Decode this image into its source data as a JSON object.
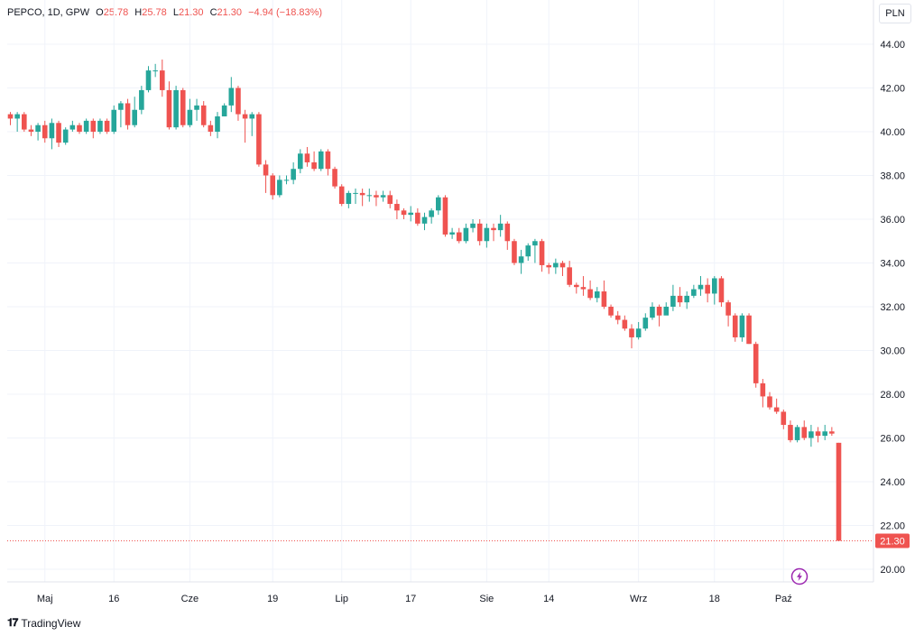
{
  "legend": {
    "symbol": "PEPCO, 1D, GPW",
    "open_label": "O",
    "open": "25.78",
    "high_label": "H",
    "high": "25.78",
    "low_label": "L",
    "low": "21.30",
    "close_label": "C",
    "close": "21.30",
    "change": "−4.94 (−18.83%)"
  },
  "currency_button": "PLN",
  "last_price_badge": "21.30",
  "brand": "TradingView",
  "colors": {
    "up": "#26a69a",
    "down": "#ef5350",
    "grid": "#f0f3fa",
    "price_line": "#ef5350",
    "alert": "#9c27b0"
  },
  "icons": {
    "alert": "lightning-icon",
    "brand": "tradingview-logo-icon"
  },
  "chart_data": {
    "type": "candlestick",
    "y_axis": {
      "min": 20,
      "max": 44,
      "ticks": [
        "44.00",
        "42.00",
        "40.00",
        "38.00",
        "36.00",
        "34.00",
        "32.00",
        "30.00",
        "28.00",
        "26.00",
        "24.00",
        "22.00",
        "20.00"
      ],
      "position": "right"
    },
    "x_axis": {
      "ticks": [
        "Maj",
        "16",
        "Cze",
        "19",
        "Lip",
        "17",
        "Sie",
        "14",
        "Wrz",
        "18",
        "Paź"
      ],
      "tick_bar_index": [
        5,
        15,
        26,
        38,
        48,
        58,
        69,
        78,
        91,
        102,
        112
      ]
    },
    "grid": true,
    "last_price": 21.3,
    "candles": [
      [
        40.8,
        40.6,
        40.9,
        40.3
      ],
      [
        40.6,
        40.8,
        40.9,
        40.0
      ],
      [
        40.8,
        40.1,
        40.9,
        40.0
      ],
      [
        40.1,
        40.0,
        40.3,
        39.8
      ],
      [
        40.0,
        40.3,
        40.4,
        39.6
      ],
      [
        40.3,
        39.7,
        40.5,
        39.5
      ],
      [
        39.7,
        40.4,
        40.6,
        39.2
      ],
      [
        40.4,
        39.5,
        40.5,
        39.3
      ],
      [
        39.5,
        40.1,
        40.2,
        39.4
      ],
      [
        40.1,
        40.3,
        40.5,
        40.0
      ],
      [
        40.3,
        40.0,
        40.4,
        39.9
      ],
      [
        40.0,
        40.5,
        40.6,
        39.9
      ],
      [
        40.5,
        40.0,
        40.6,
        39.7
      ],
      [
        40.0,
        40.5,
        40.6,
        39.9
      ],
      [
        40.5,
        40.0,
        40.6,
        39.9
      ],
      [
        40.0,
        41.0,
        41.2,
        39.9
      ],
      [
        41.0,
        41.3,
        41.4,
        40.2
      ],
      [
        41.3,
        40.3,
        41.5,
        40.1
      ],
      [
        40.3,
        41.0,
        41.6,
        40.2
      ],
      [
        41.0,
        41.9,
        42.1,
        40.8
      ],
      [
        41.9,
        42.8,
        43.0,
        41.8
      ],
      [
        42.8,
        42.8,
        43.1,
        42.5
      ],
      [
        42.8,
        41.9,
        43.3,
        41.6
      ],
      [
        41.9,
        40.2,
        42.3,
        40.1
      ],
      [
        40.2,
        41.9,
        42.1,
        40.1
      ],
      [
        41.9,
        40.3,
        42.0,
        40.2
      ],
      [
        40.3,
        41.0,
        41.5,
        40.2
      ],
      [
        41.0,
        41.2,
        41.5,
        40.5
      ],
      [
        41.2,
        40.3,
        41.4,
        40.2
      ],
      [
        40.3,
        40.0,
        40.5,
        39.8
      ],
      [
        40.0,
        40.7,
        40.9,
        39.7
      ],
      [
        40.7,
        41.2,
        41.3,
        40.7
      ],
      [
        41.2,
        42.0,
        42.5,
        40.9
      ],
      [
        42.0,
        40.8,
        42.1,
        40.5
      ],
      [
        40.8,
        40.6,
        41.0,
        39.5
      ],
      [
        40.6,
        40.8,
        40.9,
        39.8
      ],
      [
        40.8,
        38.5,
        40.9,
        38.4
      ],
      [
        38.5,
        38.0,
        38.7,
        37.2
      ],
      [
        38.0,
        37.1,
        38.1,
        36.9
      ],
      [
        37.1,
        37.8,
        38.0,
        37.0
      ],
      [
        37.8,
        37.8,
        38.0,
        37.6
      ],
      [
        37.8,
        38.3,
        38.6,
        37.6
      ],
      [
        38.3,
        39.0,
        39.2,
        38.1
      ],
      [
        39.0,
        38.6,
        39.3,
        38.4
      ],
      [
        38.6,
        38.3,
        39.1,
        38.2
      ],
      [
        38.3,
        39.1,
        39.2,
        38.2
      ],
      [
        39.1,
        38.3,
        39.2,
        38.0
      ],
      [
        38.3,
        37.5,
        38.4,
        37.4
      ],
      [
        37.5,
        36.7,
        37.6,
        36.6
      ],
      [
        36.7,
        37.2,
        37.3,
        36.5
      ],
      [
        37.2,
        37.2,
        37.4,
        36.7
      ],
      [
        37.2,
        37.1,
        37.4,
        36.6
      ],
      [
        37.1,
        37.1,
        37.4,
        36.8
      ],
      [
        37.1,
        37.0,
        37.3,
        36.6
      ],
      [
        37.0,
        37.1,
        37.3,
        36.8
      ],
      [
        37.1,
        36.7,
        37.3,
        36.5
      ],
      [
        36.7,
        36.4,
        36.9,
        36.0
      ],
      [
        36.4,
        36.2,
        36.5,
        36.0
      ],
      [
        36.2,
        36.3,
        36.6,
        35.9
      ],
      [
        36.3,
        35.8,
        36.5,
        35.7
      ],
      [
        35.8,
        36.1,
        36.3,
        35.5
      ],
      [
        36.1,
        36.4,
        36.5,
        35.8
      ],
      [
        36.4,
        37.0,
        37.1,
        36.2
      ],
      [
        37.0,
        35.3,
        37.1,
        35.2
      ],
      [
        35.3,
        35.4,
        35.6,
        35.1
      ],
      [
        35.4,
        35.0,
        35.6,
        34.9
      ],
      [
        35.0,
        35.6,
        35.8,
        34.9
      ],
      [
        35.6,
        35.8,
        36.0,
        35.4
      ],
      [
        35.8,
        35.0,
        36.0,
        34.8
      ],
      [
        35.0,
        35.6,
        35.8,
        34.7
      ],
      [
        35.6,
        35.5,
        35.8,
        35.0
      ],
      [
        35.5,
        35.8,
        36.2,
        35.2
      ],
      [
        35.8,
        35.0,
        35.9,
        34.6
      ],
      [
        35.0,
        34.0,
        35.1,
        33.9
      ],
      [
        34.0,
        34.3,
        34.6,
        33.5
      ],
      [
        34.3,
        34.8,
        34.9,
        34.1
      ],
      [
        34.8,
        35.0,
        35.1,
        34.0
      ],
      [
        35.0,
        33.9,
        35.1,
        33.6
      ],
      [
        33.9,
        33.8,
        34.0,
        33.5
      ],
      [
        33.8,
        34.0,
        34.2,
        33.5
      ],
      [
        34.0,
        33.8,
        34.1,
        33.4
      ],
      [
        33.8,
        33.0,
        34.1,
        32.9
      ],
      [
        33.0,
        32.9,
        33.1,
        32.6
      ],
      [
        32.9,
        32.8,
        33.4,
        32.5
      ],
      [
        32.8,
        32.4,
        33.2,
        32.3
      ],
      [
        32.4,
        32.7,
        32.9,
        32.2
      ],
      [
        32.7,
        32.0,
        33.2,
        31.9
      ],
      [
        32.0,
        31.6,
        32.1,
        31.5
      ],
      [
        31.6,
        31.4,
        31.8,
        31.2
      ],
      [
        31.4,
        31.0,
        31.6,
        30.9
      ],
      [
        31.0,
        30.6,
        31.2,
        30.1
      ],
      [
        30.6,
        31.0,
        31.3,
        30.5
      ],
      [
        31.0,
        31.5,
        31.7,
        30.9
      ],
      [
        31.5,
        32.0,
        32.2,
        31.4
      ],
      [
        32.0,
        31.6,
        32.1,
        31.1
      ],
      [
        31.6,
        32.0,
        32.2,
        31.8
      ],
      [
        32.0,
        32.5,
        33.0,
        31.8
      ],
      [
        32.5,
        32.2,
        32.9,
        32.0
      ],
      [
        32.2,
        32.5,
        32.7,
        31.9
      ],
      [
        32.5,
        32.8,
        33.0,
        32.4
      ],
      [
        32.8,
        33.0,
        33.4,
        32.5
      ],
      [
        33.0,
        32.6,
        33.3,
        32.2
      ],
      [
        32.6,
        33.3,
        33.4,
        32.1
      ],
      [
        33.3,
        32.2,
        33.4,
        32.0
      ],
      [
        32.2,
        31.6,
        32.3,
        31.1
      ],
      [
        31.6,
        30.6,
        31.7,
        30.4
      ],
      [
        30.6,
        31.6,
        31.7,
        30.4
      ],
      [
        31.6,
        30.3,
        31.7,
        30.3
      ],
      [
        30.3,
        28.5,
        30.4,
        28.3
      ],
      [
        28.5,
        27.9,
        28.7,
        27.4
      ],
      [
        27.9,
        27.4,
        28.1,
        27.3
      ],
      [
        27.4,
        27.2,
        27.8,
        27.1
      ],
      [
        27.2,
        26.6,
        27.3,
        26.4
      ],
      [
        26.6,
        25.9,
        26.8,
        25.8
      ],
      [
        25.9,
        26.5,
        26.6,
        25.8
      ],
      [
        26.5,
        26.0,
        26.8,
        25.9
      ],
      [
        26.0,
        26.3,
        26.6,
        25.6
      ],
      [
        26.3,
        26.1,
        26.5,
        25.8
      ],
      [
        26.1,
        26.3,
        26.6,
        25.9
      ],
      [
        26.3,
        26.2,
        26.5,
        26.1
      ],
      [
        25.78,
        21.3,
        25.78,
        21.3
      ]
    ]
  }
}
